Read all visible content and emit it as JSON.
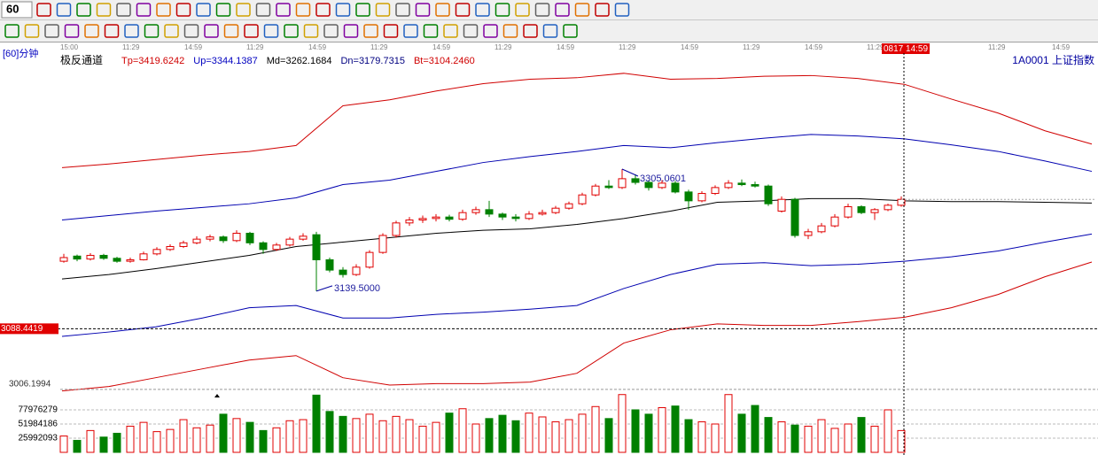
{
  "toolbar": {
    "period": "60"
  },
  "chart_data": {
    "type": "candlestick",
    "period_label": "[60]分钟",
    "indicator_name": "极反通道",
    "indicator_values": [
      "Tp=3419.6242",
      "Up=3344.1387",
      "Md=3262.1684",
      "Dn=3179.7315",
      "Bt=3104.2460"
    ],
    "indicator_colors": [
      "#d00000",
      "#0000c0",
      "#000000",
      "#000080",
      "#d00000"
    ],
    "symbol": "1A0001 上证指数",
    "time_labels": [
      "15:00",
      "11:29",
      "14:59",
      "11:29",
      "14:59",
      "11:29",
      "14:59",
      "11:29",
      "14:59",
      "11:29",
      "14:59",
      "11:29",
      "14:59",
      "11:29"
    ],
    "cursor_time": "0817 14:59",
    "projection_time_labels": [
      "11:29",
      "14:59"
    ],
    "ylim": [
      3000,
      3460
    ],
    "up_color": "#e00000",
    "down_color": "#008000",
    "candles": [
      [
        3180,
        3190,
        3178,
        3185
      ],
      [
        3187,
        3189,
        3180,
        3183
      ],
      [
        3183,
        3191,
        3181,
        3188
      ],
      [
        3188,
        3190,
        3182,
        3184
      ],
      [
        3184,
        3186,
        3178,
        3180
      ],
      [
        3180,
        3185,
        3178,
        3182
      ],
      [
        3182,
        3193,
        3181,
        3190
      ],
      [
        3190,
        3199,
        3188,
        3196
      ],
      [
        3196,
        3203,
        3194,
        3200
      ],
      [
        3200,
        3208,
        3198,
        3205
      ],
      [
        3205,
        3214,
        3203,
        3210
      ],
      [
        3210,
        3216,
        3207,
        3213
      ],
      [
        3213,
        3215,
        3205,
        3208
      ],
      [
        3208,
        3222,
        3206,
        3218
      ],
      [
        3218,
        3220,
        3202,
        3205
      ],
      [
        3205,
        3207,
        3190,
        3196
      ],
      [
        3196,
        3205,
        3194,
        3202
      ],
      [
        3202,
        3213,
        3200,
        3210
      ],
      [
        3210,
        3218,
        3208,
        3214
      ],
      [
        3216,
        3220,
        3139.5,
        3182
      ],
      [
        3182,
        3185,
        3165,
        3168
      ],
      [
        3168,
        3172,
        3158,
        3162
      ],
      [
        3162,
        3176,
        3160,
        3172
      ],
      [
        3172,
        3195,
        3170,
        3192
      ],
      [
        3192,
        3218,
        3190,
        3215
      ],
      [
        3215,
        3235,
        3212,
        3232
      ],
      [
        3232,
        3240,
        3228,
        3236
      ],
      [
        3236,
        3242,
        3232,
        3238
      ],
      [
        3238,
        3244,
        3234,
        3240
      ],
      [
        3240,
        3243,
        3234,
        3237
      ],
      [
        3237,
        3250,
        3235,
        3246
      ],
      [
        3246,
        3254,
        3243,
        3250
      ],
      [
        3250,
        3262,
        3240,
        3244
      ],
      [
        3244,
        3246,
        3236,
        3240
      ],
      [
        3240,
        3244,
        3234,
        3238
      ],
      [
        3238,
        3248,
        3236,
        3244
      ],
      [
        3244,
        3250,
        3242,
        3246
      ],
      [
        3246,
        3255,
        3244,
        3252
      ],
      [
        3252,
        3261,
        3250,
        3258
      ],
      [
        3258,
        3273,
        3256,
        3270
      ],
      [
        3270,
        3285,
        3268,
        3282
      ],
      [
        3282,
        3290,
        3278,
        3280
      ],
      [
        3280,
        3305.0601,
        3278,
        3292
      ],
      [
        3292,
        3298,
        3284,
        3287
      ],
      [
        3287,
        3290,
        3276,
        3280
      ],
      [
        3280,
        3290,
        3278,
        3286
      ],
      [
        3286,
        3289,
        3272,
        3274
      ],
      [
        3274,
        3277,
        3250,
        3262
      ],
      [
        3262,
        3275,
        3260,
        3272
      ],
      [
        3272,
        3283,
        3270,
        3280
      ],
      [
        3280,
        3290,
        3278,
        3286
      ],
      [
        3286,
        3291,
        3282,
        3284
      ],
      [
        3284,
        3288,
        3280,
        3282
      ],
      [
        3282,
        3284,
        3255,
        3258
      ],
      [
        3248,
        3268,
        3246,
        3264
      ],
      [
        3264,
        3266,
        3212,
        3215
      ],
      [
        3215,
        3224,
        3210,
        3220
      ],
      [
        3220,
        3232,
        3218,
        3228
      ],
      [
        3228,
        3244,
        3226,
        3240
      ],
      [
        3240,
        3258,
        3238,
        3254
      ],
      [
        3254,
        3256,
        3244,
        3246
      ],
      [
        3246,
        3252,
        3236,
        3250
      ],
      [
        3250,
        3258,
        3248,
        3256
      ],
      [
        3256,
        3268,
        3254,
        3264
      ]
    ],
    "bands": [
      {
        "color": "#d00000",
        "values": [
          3307,
          3312,
          3318,
          3324,
          3329,
          3337,
          3391,
          3399,
          3411,
          3421,
          3427,
          3429,
          3435,
          3427,
          3428,
          3431,
          3432,
          3428,
          3420,
          3400,
          3381,
          3357,
          3339
        ]
      },
      {
        "color": "#0000b0",
        "values": [
          3236,
          3242,
          3248,
          3253,
          3258,
          3266,
          3284,
          3290,
          3302,
          3314,
          3322,
          3329,
          3337,
          3334,
          3341,
          3347,
          3352,
          3350,
          3346,
          3338,
          3329,
          3316,
          3302
        ]
      },
      {
        "color": "#000000",
        "values": [
          3156,
          3162,
          3170,
          3179,
          3188,
          3200,
          3206,
          3212,
          3218,
          3222,
          3224,
          3230,
          3238,
          3248,
          3260,
          3262,
          3265,
          3265,
          3262,
          3261,
          3261,
          3260,
          3259
        ]
      },
      {
        "color": "#0000b0",
        "values": [
          3078,
          3084,
          3091,
          3103,
          3117,
          3120,
          3103,
          3103,
          3108,
          3111,
          3115,
          3120,
          3143,
          3162,
          3176,
          3178,
          3174,
          3176,
          3180,
          3186,
          3194,
          3206,
          3217
        ]
      },
      {
        "color": "#d00000",
        "values": [
          3004,
          3010,
          3022,
          3034,
          3046,
          3052,
          3022,
          3012,
          3014,
          3014,
          3016,
          3028,
          3069,
          3087,
          3095,
          3093,
          3093,
          3098,
          3104,
          3117,
          3135,
          3159,
          3179
        ]
      }
    ],
    "annotations": [
      3305.0601,
      {
        "value": 3139.5,
        "label": "3139.5000"
      }
    ],
    "price_marker": 3088.4419,
    "lower_marker": 3006.1994,
    "volume": {
      "ylim": [
        0,
        107200000
      ],
      "yticks": [
        25992093,
        51984186,
        77976279
      ],
      "values": [
        30000000,
        22000000,
        40000000,
        28000000,
        35000000,
        48000000,
        55000000,
        38000000,
        42000000,
        60000000,
        45000000,
        50000000,
        70000000,
        62000000,
        55000000,
        40000000,
        45000000,
        58000000,
        60000000,
        105000000,
        75000000,
        66000000,
        62000000,
        70000000,
        58000000,
        66000000,
        60000000,
        48000000,
        55000000,
        72000000,
        80000000,
        52000000,
        62000000,
        68000000,
        58000000,
        72000000,
        65000000,
        56000000,
        60000000,
        70000000,
        84000000,
        62000000,
        106000000,
        78000000,
        70000000,
        82000000,
        85000000,
        60000000,
        56000000,
        52000000,
        106000000,
        70000000,
        86000000,
        64000000,
        56000000,
        50000000,
        48000000,
        60000000,
        44000000,
        52000000,
        64000000,
        48000000,
        78000000,
        40000000
      ]
    }
  }
}
